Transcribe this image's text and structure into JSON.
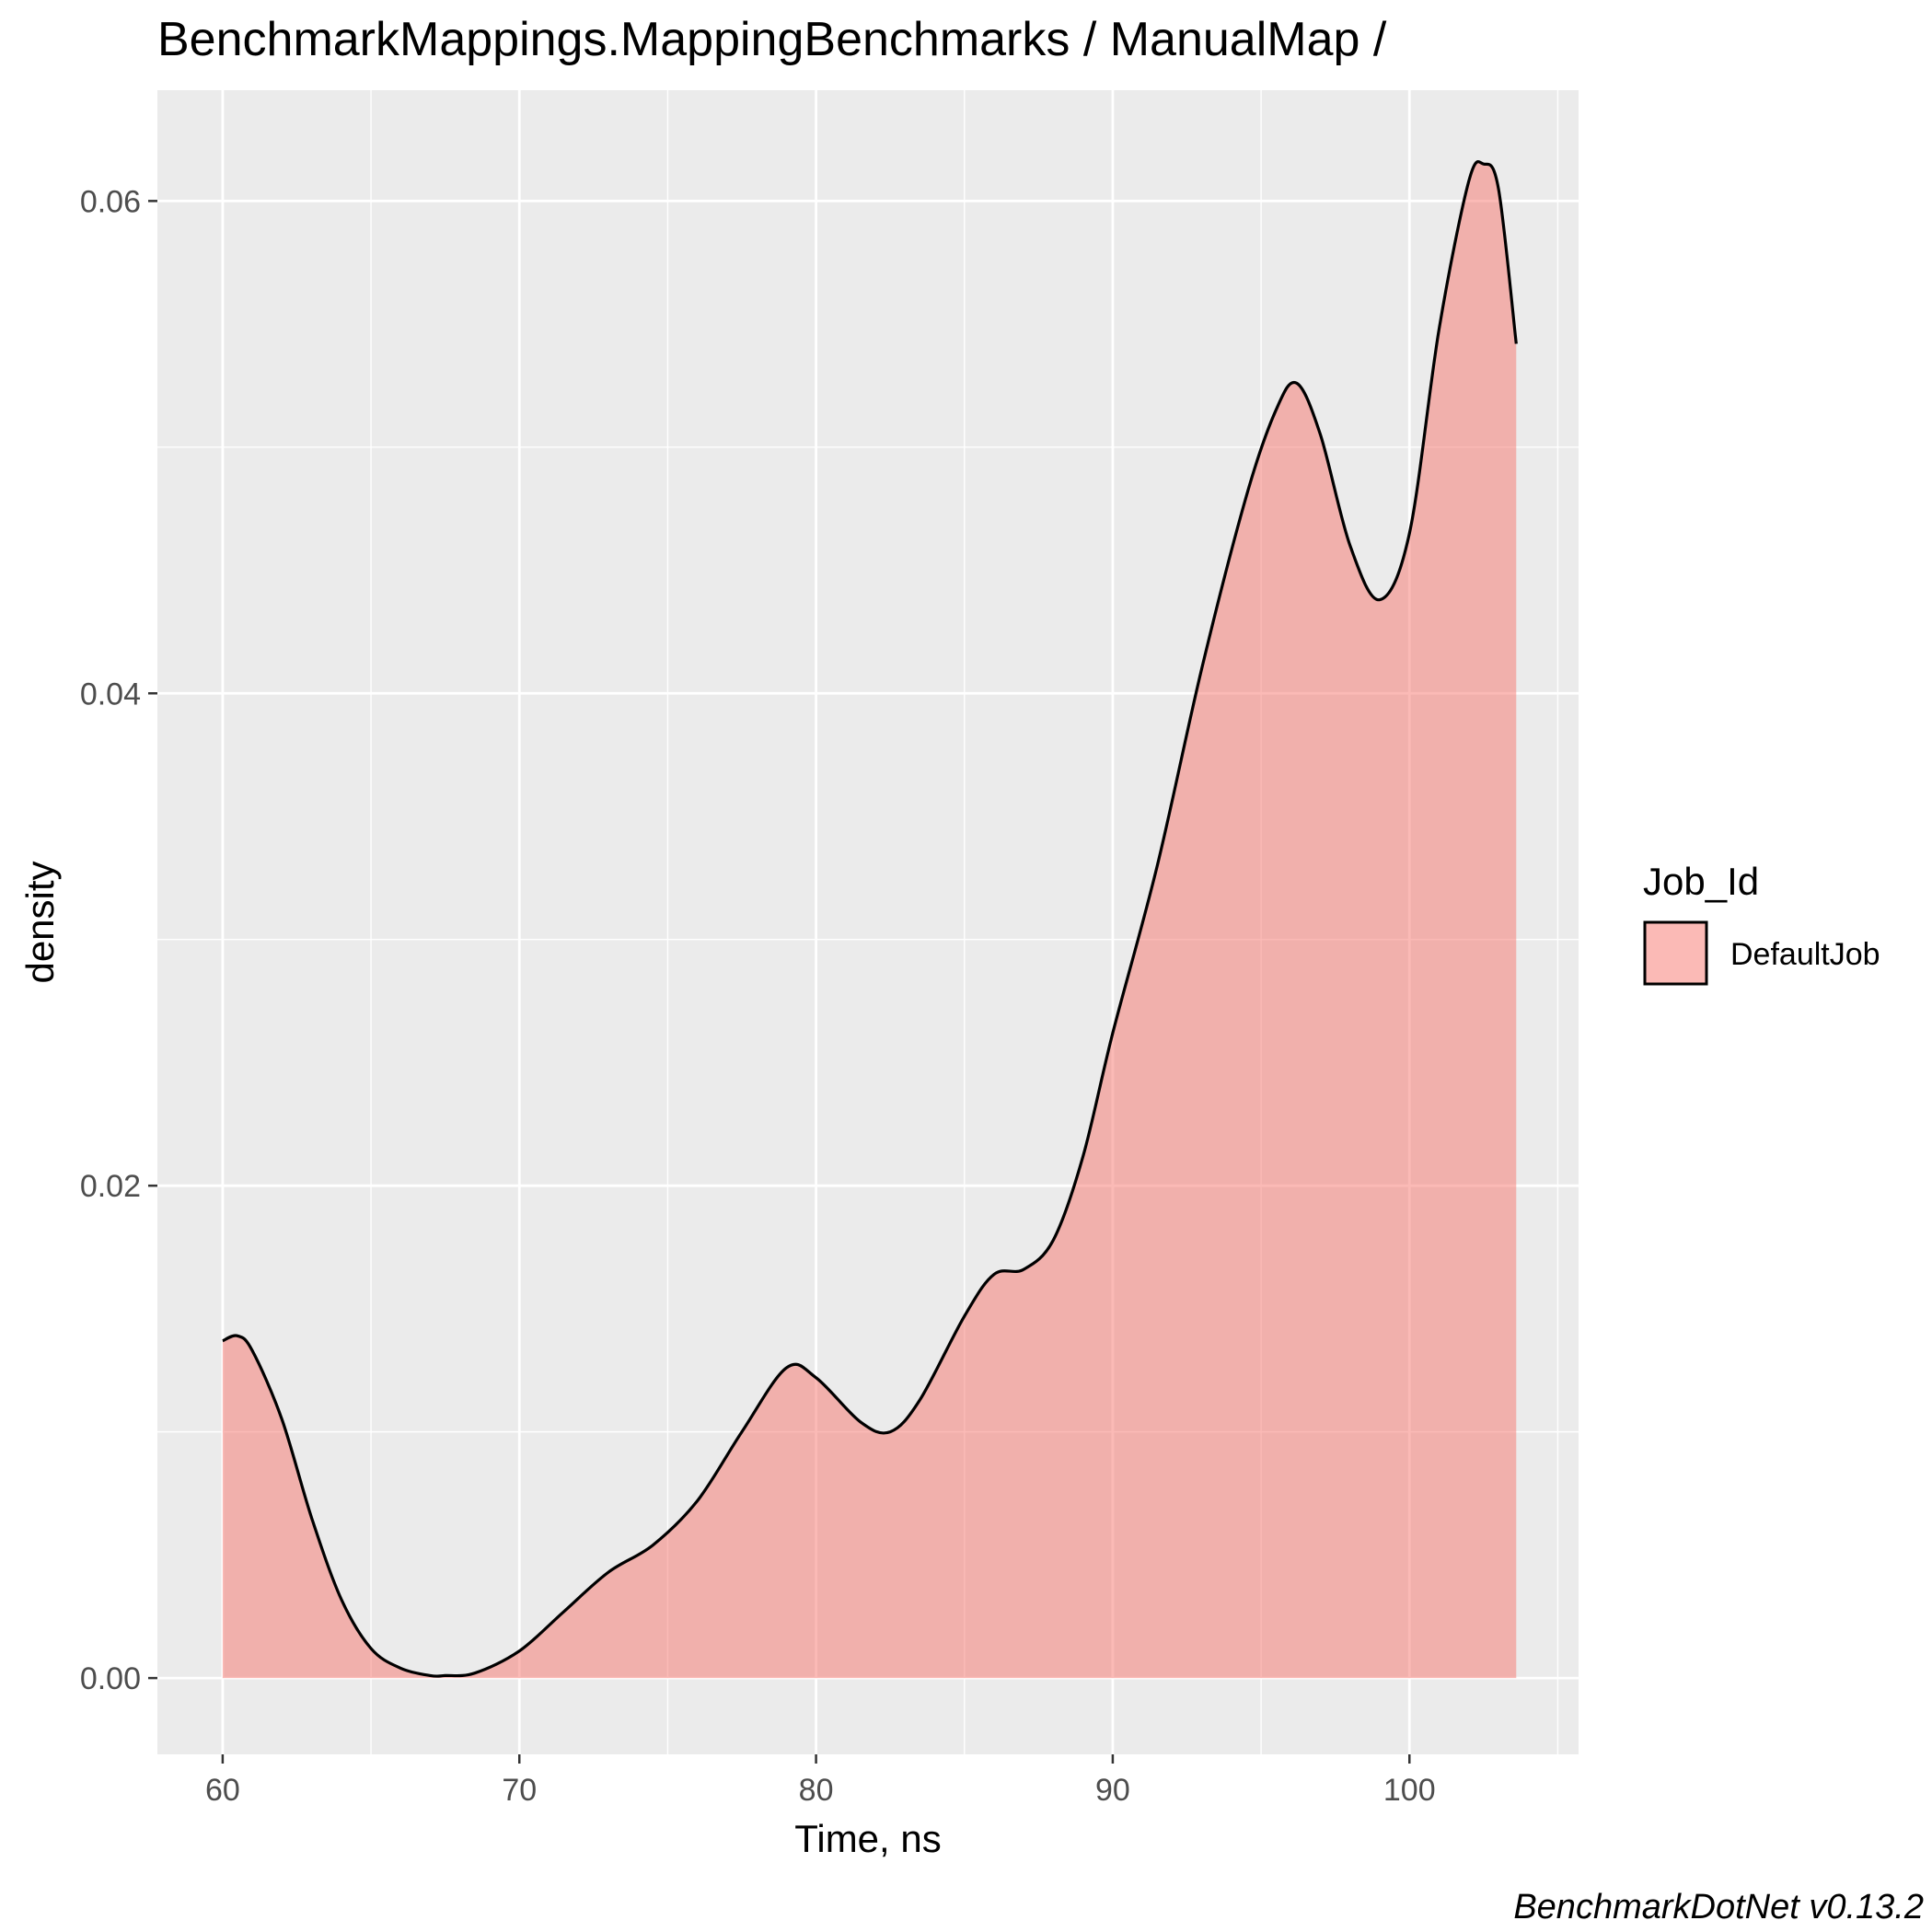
{
  "chart_data": {
    "type": "area",
    "title": "BenchmarkMappings.MappingBenchmarks / ManualMap /",
    "xlabel": "Time, ns",
    "ylabel": "density",
    "caption": "BenchmarkDotNet v0.13.2",
    "xlim": [
      57.8,
      105.7
    ],
    "ylim": [
      -0.0031,
      0.0645
    ],
    "x_ticks": [
      60,
      70,
      80,
      90,
      100
    ],
    "x_tick_labels": [
      "60",
      "70",
      "80",
      "90",
      "100"
    ],
    "y_ticks": [
      0.0,
      0.02,
      0.04,
      0.06
    ],
    "y_tick_labels": [
      "0.00",
      "0.02",
      "0.04",
      "0.06"
    ],
    "grid": true,
    "legend": {
      "title": "Job_Id",
      "position": "right",
      "entries": [
        {
          "label": "DefaultJob",
          "fill": "#f8766d"
        }
      ]
    },
    "series": [
      {
        "name": "DefaultJob",
        "fill": "#f8766d",
        "fill_opacity": 0.5,
        "line": "#000000",
        "x": [
          60.0,
          60.5,
          61.0,
          62.0,
          63.0,
          64.0,
          65.0,
          66.0,
          67.0,
          67.5,
          68.5,
          70.0,
          71.5,
          73.0,
          74.5,
          76.0,
          77.5,
          79.0,
          80.0,
          81.5,
          82.5,
          83.5,
          85.0,
          86.0,
          87.0,
          88.0,
          89.0,
          90.0,
          91.5,
          93.0,
          94.5,
          95.5,
          96.2,
          97.0,
          98.0,
          99.0,
          100.0,
          101.0,
          102.0,
          102.5,
          103.0,
          103.6
        ],
        "y": [
          0.0137,
          0.0139,
          0.0133,
          0.0105,
          0.0065,
          0.0032,
          0.0012,
          0.0004,
          0.0001,
          0.0001,
          0.0002,
          0.0011,
          0.0027,
          0.0043,
          0.0054,
          0.0072,
          0.01,
          0.0126,
          0.0122,
          0.0104,
          0.01,
          0.0113,
          0.0147,
          0.0164,
          0.0166,
          0.0178,
          0.0212,
          0.0262,
          0.033,
          0.041,
          0.048,
          0.0515,
          0.0526,
          0.0505,
          0.046,
          0.0438,
          0.0465,
          0.0548,
          0.0608,
          0.0615,
          0.0605,
          0.0542
        ]
      }
    ]
  }
}
